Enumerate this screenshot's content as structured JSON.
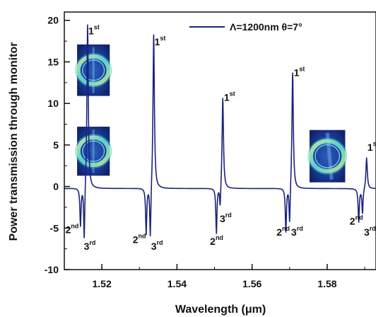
{
  "chart_data": {
    "type": "line",
    "xlabel": "Wavelength (μm)",
    "ylabel": "Power transmission through monitor",
    "xlim": [
      1.51,
      1.593
    ],
    "ylim": [
      -10,
      21
    ],
    "x_ticks": [
      1.52,
      1.54,
      1.56,
      1.58
    ],
    "x_tick_labels": [
      "1.52",
      "1.54",
      "1.56",
      "1.58"
    ],
    "y_ticks": [
      20,
      15,
      10,
      5,
      0,
      -5,
      -10
    ],
    "y_tick_labels": [
      "20",
      "15",
      "10",
      "5",
      "0",
      "-5",
      "-10"
    ],
    "grid": false,
    "legend_position": "top-right",
    "series": [
      {
        "name": "Λ=1200nm θ=7°",
        "color": "#1a237e",
        "resonances": [
          {
            "x": 1.5162,
            "y": 20.0
          },
          {
            "x": 1.5338,
            "y": 18.8
          },
          {
            "x": 1.5522,
            "y": 11.1
          },
          {
            "x": 1.5708,
            "y": 14.2
          },
          {
            "x": 1.5905,
            "y": 3.8
          }
        ],
        "dips": [
          {
            "x": 1.5143,
            "y": -4.6
          },
          {
            "x": 1.5153,
            "y": -6.9
          },
          {
            "x": 1.5318,
            "y": -5.6
          },
          {
            "x": 1.5329,
            "y": -6.6
          },
          {
            "x": 1.5505,
            "y": -5.5
          },
          {
            "x": 1.5515,
            "y": -2.8
          },
          {
            "x": 1.569,
            "y": -5.3
          },
          {
            "x": 1.57,
            "y": -4.8
          },
          {
            "x": 1.5884,
            "y": -4.0
          },
          {
            "x": 1.5894,
            "y": -3.0
          }
        ]
      }
    ],
    "annotations": [
      {
        "base": "1",
        "sup": "st",
        "x": 1.5164,
        "y": 18.3
      },
      {
        "base": "1",
        "sup": "st",
        "x": 1.534,
        "y": 17.0
      },
      {
        "base": "1",
        "sup": "st",
        "x": 1.5525,
        "y": 10.3
      },
      {
        "base": "1",
        "sup": "st",
        "x": 1.5711,
        "y": 13.3
      },
      {
        "base": "1",
        "sup": "st",
        "x": 1.5907,
        "y": 4.3
      },
      {
        "base": "2",
        "sup": "nd",
        "x": 1.5103,
        "y": -5.6
      },
      {
        "base": "3",
        "sup": "rd",
        "x": 1.5152,
        "y": -7.6
      },
      {
        "base": "2",
        "sup": "nd",
        "x": 1.5282,
        "y": -6.8
      },
      {
        "base": "3",
        "sup": "rd",
        "x": 1.5331,
        "y": -7.6
      },
      {
        "base": "2",
        "sup": "nd",
        "x": 1.5488,
        "y": -7.0
      },
      {
        "base": "3",
        "sup": "rd",
        "x": 1.5514,
        "y": -4.3
      },
      {
        "base": "2",
        "sup": "nd",
        "x": 1.5665,
        "y": -5.9
      },
      {
        "base": "3",
        "sup": "rd",
        "x": 1.5704,
        "y": -5.9
      },
      {
        "base": "2",
        "sup": "nd",
        "x": 1.586,
        "y": -4.6
      },
      {
        "base": "3",
        "sup": "rd",
        "x": 1.5898,
        "y": -5.9
      }
    ],
    "insets": [
      {
        "name": "mode-profile-inset-1",
        "x0": 1.5134,
        "x1": 1.5221,
        "y_top": 17.1,
        "y_bottom": 10.9
      },
      {
        "name": "mode-profile-inset-2",
        "x0": 1.5134,
        "x1": 1.5221,
        "y_top": 7.2,
        "y_bottom": 1.3
      },
      {
        "name": "mode-profile-inset-3",
        "x0": 1.5753,
        "x1": 1.5848,
        "y_top": 6.8,
        "y_bottom": 0.5
      }
    ]
  }
}
